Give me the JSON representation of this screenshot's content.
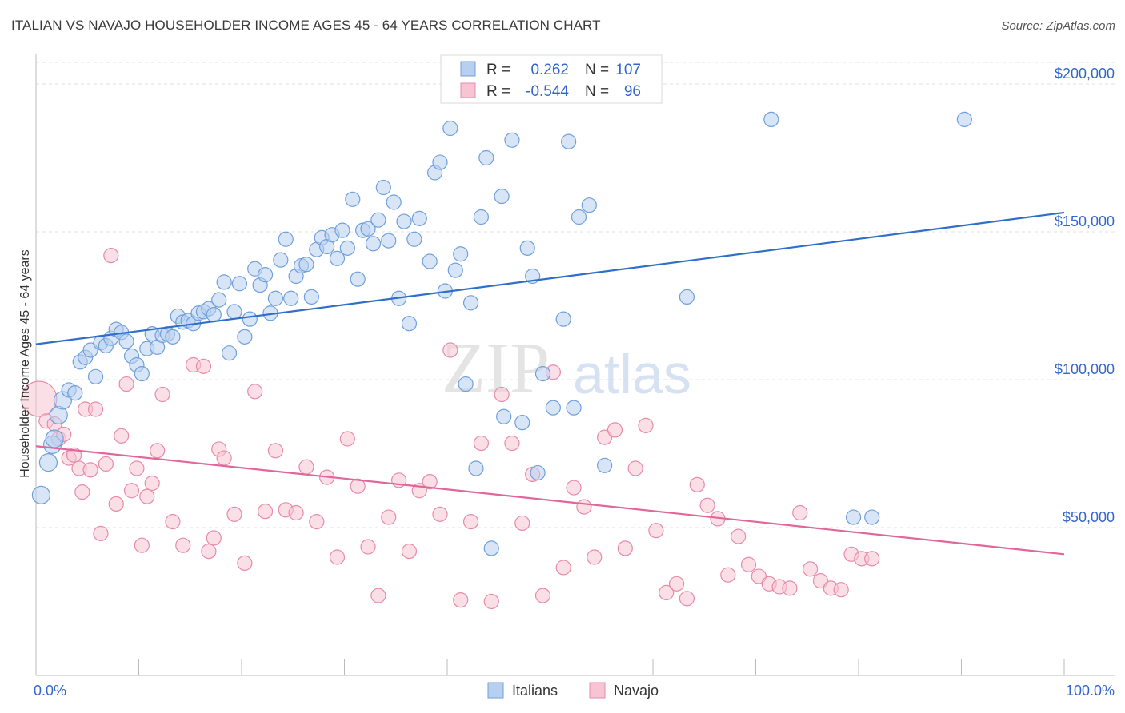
{
  "title": "ITALIAN VS NAVAJO HOUSEHOLDER INCOME AGES 45 - 64 YEARS CORRELATION CHART",
  "source": "Source: ZipAtlas.com",
  "watermark": {
    "zip": "ZIP",
    "atlas": "atlas"
  },
  "chart_data": {
    "type": "scatter",
    "xlabel": "",
    "ylabel": "Householder Income Ages 45 - 64 years",
    "xlim": [
      0,
      100
    ],
    "ylim": [
      0,
      210000
    ],
    "x_tick_labels": {
      "min": "0.0%",
      "max": "100.0%"
    },
    "y_ticks": [
      {
        "value": 50000,
        "label": "$50,000"
      },
      {
        "value": 100000,
        "label": "$100,000"
      },
      {
        "value": 150000,
        "label": "$150,000"
      },
      {
        "value": 200000,
        "label": "$200,000"
      }
    ],
    "grid": true,
    "legend_top": [
      {
        "r_label": "R =",
        "r_value": "0.262",
        "n_label": "N =",
        "n_value": "107"
      },
      {
        "r_label": "R =",
        "r_value": "-0.544",
        "n_label": "N =",
        "n_value": "96"
      }
    ],
    "series": [
      {
        "name": "Italians",
        "color": "#6fa0dc",
        "fill": "#b8d0f0",
        "trend": {
          "x0": 0,
          "y0": 112000,
          "x1": 100,
          "y1": 156500,
          "color": "#2f6fc8"
        },
        "points": [
          [
            0.5,
            61000
          ],
          [
            1.2,
            72000
          ],
          [
            1.6,
            78000
          ],
          [
            1.8,
            80000
          ],
          [
            2.2,
            88000
          ],
          [
            2.6,
            93000
          ],
          [
            3.2,
            96500
          ],
          [
            3.8,
            95500
          ],
          [
            4.3,
            106000
          ],
          [
            4.8,
            107500
          ],
          [
            5.3,
            110000
          ],
          [
            5.8,
            101000
          ],
          [
            6.3,
            112500
          ],
          [
            6.8,
            111500
          ],
          [
            7.3,
            114000
          ],
          [
            7.8,
            117000
          ],
          [
            8.3,
            116000
          ],
          [
            8.8,
            113000
          ],
          [
            9.3,
            108000
          ],
          [
            9.8,
            105000
          ],
          [
            10.3,
            102000
          ],
          [
            10.8,
            110500
          ],
          [
            11.3,
            115500
          ],
          [
            11.8,
            111000
          ],
          [
            12.3,
            115000
          ],
          [
            12.8,
            115500
          ],
          [
            13.3,
            114500
          ],
          [
            13.8,
            121500
          ],
          [
            14.3,
            119500
          ],
          [
            14.8,
            120000
          ],
          [
            15.3,
            119000
          ],
          [
            15.8,
            122500
          ],
          [
            16.3,
            123000
          ],
          [
            16.8,
            124000
          ],
          [
            17.3,
            122000
          ],
          [
            17.8,
            127000
          ],
          [
            18.3,
            133000
          ],
          [
            18.8,
            109000
          ],
          [
            19.3,
            123000
          ],
          [
            19.8,
            132500
          ],
          [
            20.3,
            114500
          ],
          [
            20.8,
            120500
          ],
          [
            21.3,
            137500
          ],
          [
            21.8,
            132000
          ],
          [
            22.3,
            135500
          ],
          [
            22.8,
            122500
          ],
          [
            23.3,
            127500
          ],
          [
            23.8,
            140500
          ],
          [
            24.3,
            147500
          ],
          [
            24.8,
            127500
          ],
          [
            25.3,
            135000
          ],
          [
            25.8,
            138500
          ],
          [
            26.3,
            139000
          ],
          [
            26.8,
            128000
          ],
          [
            27.3,
            144000
          ],
          [
            27.8,
            148000
          ],
          [
            28.3,
            145000
          ],
          [
            28.8,
            149000
          ],
          [
            29.3,
            141000
          ],
          [
            29.8,
            150500
          ],
          [
            30.3,
            144500
          ],
          [
            30.8,
            161000
          ],
          [
            31.3,
            134000
          ],
          [
            31.8,
            150500
          ],
          [
            32.3,
            151000
          ],
          [
            32.8,
            146000
          ],
          [
            33.3,
            154000
          ],
          [
            33.8,
            165000
          ],
          [
            34.3,
            147000
          ],
          [
            34.8,
            160000
          ],
          [
            35.3,
            127500
          ],
          [
            35.8,
            153500
          ],
          [
            36.3,
            119000
          ],
          [
            36.8,
            147500
          ],
          [
            37.3,
            154500
          ],
          [
            38.3,
            140000
          ],
          [
            38.8,
            170000
          ],
          [
            39.3,
            173500
          ],
          [
            39.8,
            130000
          ],
          [
            40.3,
            185000
          ],
          [
            40.8,
            137000
          ],
          [
            41.3,
            142500
          ],
          [
            41.8,
            98500
          ],
          [
            42.3,
            126000
          ],
          [
            42.8,
            70000
          ],
          [
            43.3,
            155000
          ],
          [
            43.8,
            175000
          ],
          [
            44.3,
            43000
          ],
          [
            45.3,
            162000
          ],
          [
            45.5,
            87500
          ],
          [
            46.3,
            181000
          ],
          [
            47.3,
            85500
          ],
          [
            47.8,
            144500
          ],
          [
            48.3,
            135000
          ],
          [
            48.8,
            68500
          ],
          [
            49.3,
            102000
          ],
          [
            50.3,
            90500
          ],
          [
            51.3,
            120500
          ],
          [
            51.8,
            180500
          ],
          [
            52.3,
            90500
          ],
          [
            52.8,
            155000
          ],
          [
            53.8,
            159000
          ],
          [
            55.3,
            71000
          ],
          [
            63.3,
            128000
          ],
          [
            71.5,
            188000
          ],
          [
            79.5,
            53500
          ],
          [
            81.3,
            53500
          ],
          [
            90.3,
            188000
          ]
        ]
      },
      {
        "name": "Navajo",
        "color": "#e88aaa",
        "fill": "#f7c4d4",
        "trend": {
          "x0": 0,
          "y0": 77500,
          "x1": 100,
          "y1": 41000,
          "color": "#e0679a"
        },
        "points": [
          [
            0.3,
            93500
          ],
          [
            1.0,
            86000
          ],
          [
            1.8,
            85000
          ],
          [
            2.2,
            80000
          ],
          [
            2.7,
            81500
          ],
          [
            3.2,
            73500
          ],
          [
            3.7,
            74500
          ],
          [
            4.2,
            70000
          ],
          [
            4.5,
            62000
          ],
          [
            4.8,
            90000
          ],
          [
            5.3,
            69500
          ],
          [
            5.8,
            90000
          ],
          [
            6.3,
            48000
          ],
          [
            6.8,
            71500
          ],
          [
            7.3,
            142000
          ],
          [
            7.8,
            58000
          ],
          [
            8.3,
            81000
          ],
          [
            8.8,
            98500
          ],
          [
            9.3,
            62500
          ],
          [
            9.8,
            70000
          ],
          [
            10.3,
            44000
          ],
          [
            10.8,
            60500
          ],
          [
            11.3,
            65000
          ],
          [
            11.8,
            76000
          ],
          [
            12.3,
            95000
          ],
          [
            13.3,
            52000
          ],
          [
            14.3,
            44000
          ],
          [
            15.3,
            105000
          ],
          [
            16.3,
            104500
          ],
          [
            16.8,
            42000
          ],
          [
            17.3,
            46500
          ],
          [
            17.8,
            76500
          ],
          [
            18.3,
            73500
          ],
          [
            19.3,
            54500
          ],
          [
            20.3,
            38000
          ],
          [
            21.3,
            96000
          ],
          [
            22.3,
            55500
          ],
          [
            23.3,
            76000
          ],
          [
            24.3,
            56000
          ],
          [
            25.3,
            55000
          ],
          [
            26.3,
            70500
          ],
          [
            27.3,
            52000
          ],
          [
            28.3,
            67000
          ],
          [
            29.3,
            40000
          ],
          [
            30.3,
            80000
          ],
          [
            31.3,
            64000
          ],
          [
            32.3,
            43500
          ],
          [
            33.3,
            27000
          ],
          [
            34.3,
            53500
          ],
          [
            35.3,
            66000
          ],
          [
            36.3,
            42000
          ],
          [
            37.3,
            62500
          ],
          [
            38.3,
            65500
          ],
          [
            39.3,
            54500
          ],
          [
            40.3,
            110000
          ],
          [
            41.3,
            25500
          ],
          [
            42.3,
            52000
          ],
          [
            43.3,
            78500
          ],
          [
            44.3,
            25000
          ],
          [
            45.3,
            95000
          ],
          [
            46.3,
            78500
          ],
          [
            47.3,
            51500
          ],
          [
            48.3,
            68000
          ],
          [
            49.3,
            27000
          ],
          [
            50.3,
            102500
          ],
          [
            51.3,
            36500
          ],
          [
            52.3,
            63500
          ],
          [
            53.3,
            57000
          ],
          [
            54.3,
            40000
          ],
          [
            55.3,
            80500
          ],
          [
            56.3,
            83000
          ],
          [
            57.3,
            43000
          ],
          [
            58.3,
            70000
          ],
          [
            59.3,
            84500
          ],
          [
            60.3,
            49000
          ],
          [
            61.3,
            28000
          ],
          [
            62.3,
            31000
          ],
          [
            63.3,
            26000
          ],
          [
            64.3,
            64500
          ],
          [
            65.3,
            57500
          ],
          [
            66.3,
            53000
          ],
          [
            67.3,
            34000
          ],
          [
            68.3,
            47000
          ],
          [
            69.3,
            37500
          ],
          [
            70.3,
            33500
          ],
          [
            71.3,
            31000
          ],
          [
            72.3,
            30000
          ],
          [
            73.3,
            29500
          ],
          [
            74.3,
            55000
          ],
          [
            75.3,
            36000
          ],
          [
            76.3,
            32000
          ],
          [
            77.3,
            29500
          ],
          [
            78.3,
            29000
          ],
          [
            79.3,
            41000
          ],
          [
            80.3,
            39500
          ],
          [
            81.3,
            39500
          ]
        ]
      }
    ]
  }
}
